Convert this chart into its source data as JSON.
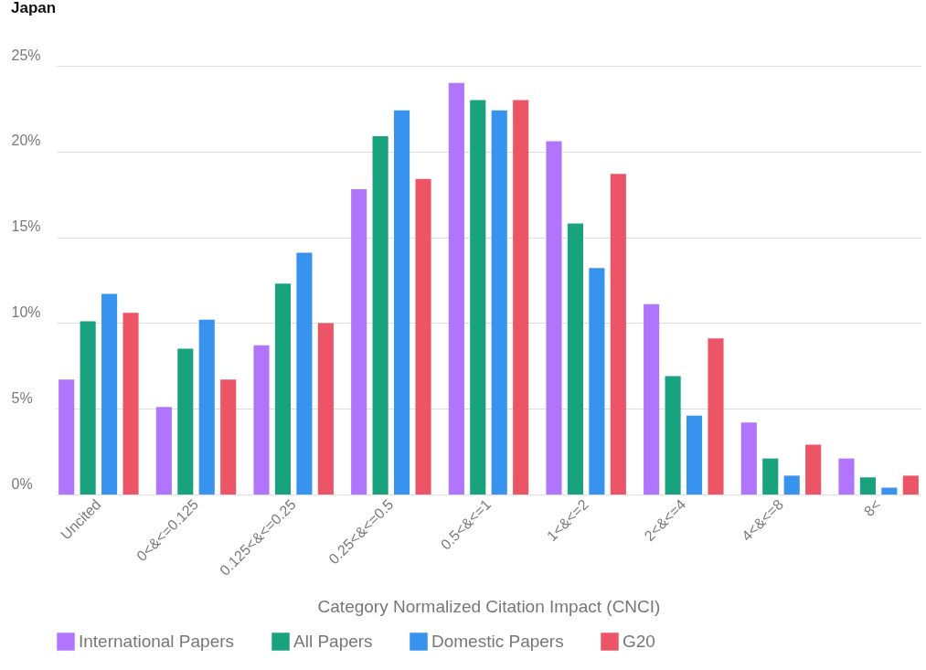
{
  "chart_data": {
    "type": "bar",
    "title": "Japan",
    "xlabel": "Category Normalized Citation Impact (CNCI)",
    "categories": [
      "Uncited",
      "0<&<=0.125",
      "0.125<&<=0.25",
      "0.25<&<=0.5",
      "0.5<&<=1",
      "1<&<=2",
      "2<&<=4",
      "4<&<=8",
      "8<"
    ],
    "series": [
      {
        "name": "International Papers",
        "color": "#b175fb",
        "values": [
          6.7,
          5.1,
          8.7,
          17.8,
          24.0,
          20.6,
          11.1,
          4.2,
          2.1
        ]
      },
      {
        "name": "All Papers",
        "color": "#18a37e",
        "values": [
          10.1,
          8.5,
          12.3,
          20.9,
          23.0,
          15.8,
          6.9,
          2.1,
          1.0
        ]
      },
      {
        "name": "Domestic Papers",
        "color": "#3793ee",
        "values": [
          11.7,
          10.2,
          14.1,
          22.4,
          22.4,
          13.2,
          4.6,
          1.1,
          0.4
        ]
      },
      {
        "name": "G20",
        "color": "#ec5565",
        "values": [
          10.6,
          6.7,
          10.0,
          18.4,
          23.0,
          18.7,
          9.1,
          2.9,
          1.1
        ]
      }
    ],
    "ylim": [
      0,
      25
    ],
    "yticks": [
      {
        "value": 0,
        "label": "0%"
      },
      {
        "value": 5,
        "label": "5%"
      },
      {
        "value": 10,
        "label": "10%"
      },
      {
        "value": 15,
        "label": "15%"
      },
      {
        "value": 20,
        "label": "20%"
      },
      {
        "value": 25,
        "label": "25%"
      }
    ],
    "grid": "y",
    "legend": "bottom"
  }
}
